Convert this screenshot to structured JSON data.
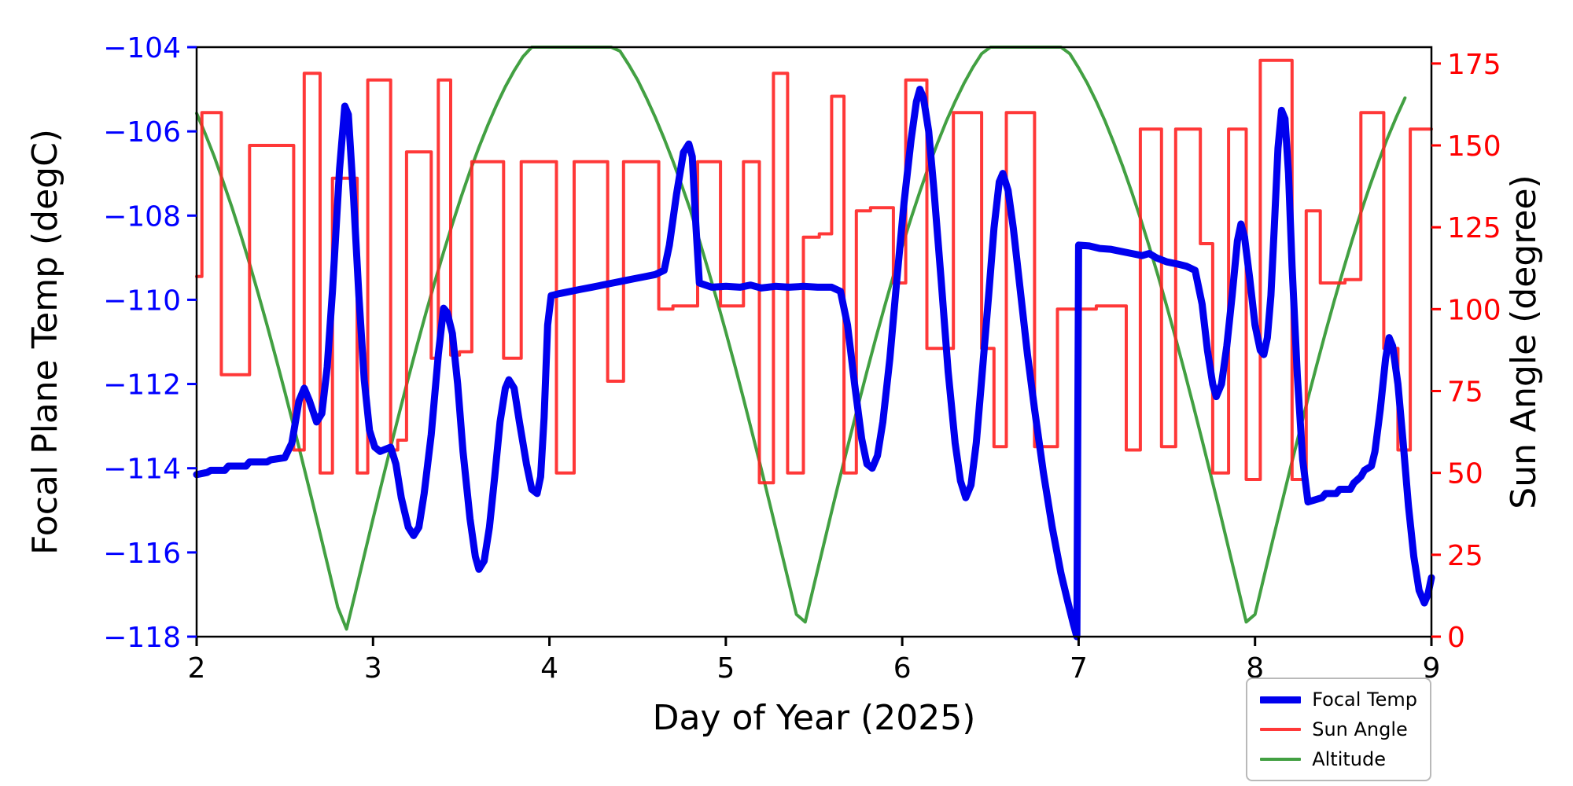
{
  "chart_data": {
    "type": "line",
    "title": "",
    "xlabel": "Day of Year (2025)",
    "ylabel_left": "Focal Plane Temp (degC)",
    "ylabel_right": "Sun Angle (degree)",
    "grid": false,
    "legend_position": "lower-right-outside",
    "x_axis": {
      "min": 2,
      "max": 9,
      "ticks": [
        2,
        3,
        4,
        5,
        6,
        7,
        8,
        9
      ],
      "tick_labels": [
        "2",
        "3",
        "4",
        "5",
        "6",
        "7",
        "8",
        "9"
      ]
    },
    "y_left_axis": {
      "min": -118,
      "max": -104,
      "color": "#0000ff",
      "ticks": [
        -104,
        -106,
        -108,
        -110,
        -112,
        -114,
        -116,
        -118
      ],
      "tick_labels": [
        "−104",
        "−106",
        "−108",
        "−110",
        "−112",
        "−114",
        "−116",
        "−118"
      ]
    },
    "y_right_axis": {
      "min": 0,
      "max": 180,
      "color": "#ff0000",
      "ticks": [
        0,
        25,
        50,
        75,
        100,
        125,
        150,
        175
      ],
      "tick_labels": [
        "0",
        "25",
        "50",
        "75",
        "100",
        "125",
        "150",
        "175"
      ]
    },
    "series": [
      {
        "name": "Focal Temp",
        "axis": "left",
        "color": "#0000ee",
        "width": 9,
        "opacity": 1,
        "style": "line",
        "points": [
          [
            2.0,
            -114.15
          ],
          [
            2.06,
            -114.1
          ],
          [
            2.08,
            -114.05
          ],
          [
            2.16,
            -114.05
          ],
          [
            2.18,
            -113.95
          ],
          [
            2.28,
            -113.95
          ],
          [
            2.3,
            -113.85
          ],
          [
            2.4,
            -113.85
          ],
          [
            2.42,
            -113.8
          ],
          [
            2.5,
            -113.75
          ],
          [
            2.54,
            -113.4
          ],
          [
            2.58,
            -112.4
          ],
          [
            2.61,
            -112.1
          ],
          [
            2.64,
            -112.4
          ],
          [
            2.68,
            -112.9
          ],
          [
            2.71,
            -112.7
          ],
          [
            2.74,
            -111.6
          ],
          [
            2.77,
            -109.8
          ],
          [
            2.81,
            -106.9
          ],
          [
            2.84,
            -105.4
          ],
          [
            2.86,
            -105.6
          ],
          [
            2.89,
            -107.6
          ],
          [
            2.92,
            -109.9
          ],
          [
            2.95,
            -111.9
          ],
          [
            2.98,
            -113.1
          ],
          [
            3.01,
            -113.5
          ],
          [
            3.04,
            -113.6
          ],
          [
            3.07,
            -113.55
          ],
          [
            3.1,
            -113.5
          ],
          [
            3.13,
            -113.9
          ],
          [
            3.16,
            -114.7
          ],
          [
            3.2,
            -115.4
          ],
          [
            3.23,
            -115.6
          ],
          [
            3.26,
            -115.4
          ],
          [
            3.29,
            -114.6
          ],
          [
            3.33,
            -113.2
          ],
          [
            3.37,
            -111.3
          ],
          [
            3.4,
            -110.2
          ],
          [
            3.42,
            -110.3
          ],
          [
            3.45,
            -110.8
          ],
          [
            3.48,
            -112.0
          ],
          [
            3.51,
            -113.6
          ],
          [
            3.55,
            -115.2
          ],
          [
            3.58,
            -116.1
          ],
          [
            3.6,
            -116.4
          ],
          [
            3.63,
            -116.2
          ],
          [
            3.66,
            -115.4
          ],
          [
            3.69,
            -114.2
          ],
          [
            3.72,
            -112.9
          ],
          [
            3.75,
            -112.1
          ],
          [
            3.77,
            -111.9
          ],
          [
            3.8,
            -112.1
          ],
          [
            3.83,
            -112.9
          ],
          [
            3.87,
            -113.9
          ],
          [
            3.9,
            -114.5
          ],
          [
            3.93,
            -114.6
          ],
          [
            3.95,
            -114.2
          ],
          [
            3.97,
            -112.8
          ],
          [
            3.99,
            -110.6
          ],
          [
            4.01,
            -109.9
          ],
          [
            4.06,
            -109.85
          ],
          [
            4.12,
            -109.8
          ],
          [
            4.18,
            -109.75
          ],
          [
            4.24,
            -109.7
          ],
          [
            4.3,
            -109.65
          ],
          [
            4.36,
            -109.6
          ],
          [
            4.42,
            -109.55
          ],
          [
            4.48,
            -109.5
          ],
          [
            4.54,
            -109.45
          ],
          [
            4.6,
            -109.4
          ],
          [
            4.65,
            -109.3
          ],
          [
            4.68,
            -108.7
          ],
          [
            4.72,
            -107.5
          ],
          [
            4.76,
            -106.5
          ],
          [
            4.79,
            -106.3
          ],
          [
            4.81,
            -106.6
          ],
          [
            4.83,
            -108.2
          ],
          [
            4.85,
            -109.6
          ],
          [
            4.92,
            -109.7
          ],
          [
            5.0,
            -109.68
          ],
          [
            5.08,
            -109.7
          ],
          [
            5.14,
            -109.65
          ],
          [
            5.2,
            -109.72
          ],
          [
            5.28,
            -109.68
          ],
          [
            5.36,
            -109.7
          ],
          [
            5.44,
            -109.68
          ],
          [
            5.52,
            -109.7
          ],
          [
            5.6,
            -109.7
          ],
          [
            5.65,
            -109.8
          ],
          [
            5.69,
            -110.6
          ],
          [
            5.73,
            -112.0
          ],
          [
            5.77,
            -113.3
          ],
          [
            5.8,
            -113.9
          ],
          [
            5.83,
            -114.0
          ],
          [
            5.86,
            -113.7
          ],
          [
            5.89,
            -112.9
          ],
          [
            5.93,
            -111.4
          ],
          [
            5.97,
            -109.5
          ],
          [
            6.01,
            -107.7
          ],
          [
            6.05,
            -106.2
          ],
          [
            6.08,
            -105.3
          ],
          [
            6.1,
            -105.0
          ],
          [
            6.12,
            -105.2
          ],
          [
            6.15,
            -106.0
          ],
          [
            6.18,
            -107.4
          ],
          [
            6.22,
            -109.5
          ],
          [
            6.26,
            -111.7
          ],
          [
            6.3,
            -113.4
          ],
          [
            6.33,
            -114.3
          ],
          [
            6.36,
            -114.7
          ],
          [
            6.39,
            -114.4
          ],
          [
            6.42,
            -113.4
          ],
          [
            6.45,
            -111.9
          ],
          [
            6.49,
            -109.9
          ],
          [
            6.52,
            -108.3
          ],
          [
            6.55,
            -107.2
          ],
          [
            6.57,
            -107.0
          ],
          [
            6.6,
            -107.4
          ],
          [
            6.63,
            -108.3
          ],
          [
            6.67,
            -109.8
          ],
          [
            6.71,
            -111.3
          ],
          [
            6.75,
            -112.6
          ],
          [
            6.8,
            -114.1
          ],
          [
            6.85,
            -115.4
          ],
          [
            6.9,
            -116.5
          ],
          [
            6.94,
            -117.2
          ],
          [
            6.97,
            -117.7
          ],
          [
            6.99,
            -118.0
          ],
          [
            7.0,
            -108.7
          ],
          [
            7.06,
            -108.72
          ],
          [
            7.12,
            -108.78
          ],
          [
            7.18,
            -108.8
          ],
          [
            7.24,
            -108.85
          ],
          [
            7.3,
            -108.9
          ],
          [
            7.36,
            -108.95
          ],
          [
            7.4,
            -108.9
          ],
          [
            7.44,
            -109.0
          ],
          [
            7.5,
            -109.1
          ],
          [
            7.56,
            -109.15
          ],
          [
            7.61,
            -109.2
          ],
          [
            7.66,
            -109.3
          ],
          [
            7.7,
            -110.1
          ],
          [
            7.73,
            -111.2
          ],
          [
            7.76,
            -112.0
          ],
          [
            7.78,
            -112.3
          ],
          [
            7.81,
            -112.0
          ],
          [
            7.84,
            -111.1
          ],
          [
            7.87,
            -109.9
          ],
          [
            7.9,
            -108.6
          ],
          [
            7.92,
            -108.2
          ],
          [
            7.94,
            -108.5
          ],
          [
            7.97,
            -109.5
          ],
          [
            8.0,
            -110.6
          ],
          [
            8.03,
            -111.2
          ],
          [
            8.05,
            -111.3
          ],
          [
            8.07,
            -110.9
          ],
          [
            8.09,
            -109.9
          ],
          [
            8.11,
            -108.2
          ],
          [
            8.13,
            -106.4
          ],
          [
            8.15,
            -105.5
          ],
          [
            8.17,
            -105.7
          ],
          [
            8.19,
            -107.0
          ],
          [
            8.21,
            -109.2
          ],
          [
            8.24,
            -111.8
          ],
          [
            8.27,
            -113.8
          ],
          [
            8.3,
            -114.8
          ],
          [
            8.34,
            -114.75
          ],
          [
            8.38,
            -114.7
          ],
          [
            8.4,
            -114.6
          ],
          [
            8.46,
            -114.6
          ],
          [
            8.48,
            -114.5
          ],
          [
            8.54,
            -114.5
          ],
          [
            8.56,
            -114.35
          ],
          [
            8.6,
            -114.2
          ],
          [
            8.62,
            -114.05
          ],
          [
            8.66,
            -113.95
          ],
          [
            8.68,
            -113.6
          ],
          [
            8.71,
            -112.6
          ],
          [
            8.74,
            -111.4
          ],
          [
            8.76,
            -110.9
          ],
          [
            8.78,
            -111.1
          ],
          [
            8.81,
            -112.0
          ],
          [
            8.84,
            -113.4
          ],
          [
            8.87,
            -114.9
          ],
          [
            8.9,
            -116.1
          ],
          [
            8.93,
            -116.9
          ],
          [
            8.96,
            -117.2
          ],
          [
            8.98,
            -117.0
          ],
          [
            9.0,
            -116.6
          ]
        ]
      },
      {
        "name": "Sun Angle",
        "axis": "right",
        "color": "#ff2222",
        "width": 4,
        "opacity": 0.9,
        "style": "step",
        "points": [
          [
            2.0,
            110
          ],
          [
            2.03,
            160
          ],
          [
            2.14,
            80
          ],
          [
            2.3,
            150
          ],
          [
            2.55,
            57
          ],
          [
            2.61,
            172
          ],
          [
            2.7,
            50
          ],
          [
            2.77,
            140
          ],
          [
            2.91,
            50
          ],
          [
            2.97,
            170
          ],
          [
            3.1,
            57
          ],
          [
            3.14,
            60
          ],
          [
            3.19,
            148
          ],
          [
            3.33,
            85
          ],
          [
            3.37,
            170
          ],
          [
            3.44,
            86
          ],
          [
            3.49,
            87
          ],
          [
            3.56,
            145
          ],
          [
            3.74,
            85
          ],
          [
            3.84,
            145
          ],
          [
            4.04,
            50
          ],
          [
            4.14,
            145
          ],
          [
            4.33,
            78
          ],
          [
            4.42,
            145
          ],
          [
            4.62,
            100
          ],
          [
            4.7,
            101
          ],
          [
            4.84,
            145
          ],
          [
            4.97,
            101
          ],
          [
            5.1,
            145
          ],
          [
            5.19,
            47
          ],
          [
            5.27,
            172
          ],
          [
            5.35,
            50
          ],
          [
            5.44,
            122
          ],
          [
            5.53,
            123
          ],
          [
            5.6,
            165
          ],
          [
            5.67,
            50
          ],
          [
            5.74,
            130
          ],
          [
            5.82,
            131
          ],
          [
            5.95,
            108
          ],
          [
            6.02,
            170
          ],
          [
            6.14,
            88
          ],
          [
            6.29,
            160
          ],
          [
            6.45,
            88
          ],
          [
            6.52,
            58
          ],
          [
            6.59,
            160
          ],
          [
            6.75,
            58
          ],
          [
            6.88,
            100
          ],
          [
            7.1,
            101
          ],
          [
            7.27,
            57
          ],
          [
            7.35,
            155
          ],
          [
            7.47,
            58
          ],
          [
            7.55,
            155
          ],
          [
            7.69,
            120
          ],
          [
            7.76,
            50
          ],
          [
            7.85,
            155
          ],
          [
            7.95,
            48
          ],
          [
            8.03,
            176
          ],
          [
            8.21,
            48
          ],
          [
            8.29,
            130
          ],
          [
            8.37,
            108
          ],
          [
            8.51,
            109
          ],
          [
            8.6,
            160
          ],
          [
            8.73,
            88
          ],
          [
            8.81,
            57
          ],
          [
            8.88,
            155
          ]
        ]
      },
      {
        "name": "Altitude",
        "axis": "right",
        "color": "#2e962e",
        "width": 4,
        "opacity": 0.9,
        "style": "line",
        "x_start": 2.0,
        "x_step": 0.05,
        "values": [
          159.8,
          153.4,
          146.6,
          139.0,
          131.1,
          122.7,
          113.9,
          104.6,
          95.0,
          85.0,
          74.8,
          64.3,
          53.5,
          42.6,
          31.5,
          20.3,
          9.0,
          2.3,
          13.5,
          24.8,
          36.0,
          47.0,
          57.9,
          68.5,
          78.9,
          89.1,
          98.9,
          108.3,
          117.4,
          126.0,
          134.3,
          142.1,
          149.4,
          156.1,
          162.3,
          167.9,
          172.8,
          177.1,
          180,
          180,
          180,
          180,
          180,
          180,
          180,
          180,
          180,
          180,
          178.8,
          174.6,
          170.0,
          164.5,
          158.6,
          152.1,
          145.2,
          137.8,
          130.1,
          121.0,
          112.0,
          102.7,
          93.0,
          83.0,
          72.7,
          62.1,
          51.4,
          40.4,
          29.3,
          18.1,
          6.8,
          4.5,
          15.8,
          27.0,
          38.2,
          49.2,
          60.0,
          70.6,
          81.0,
          91.1,
          100.8,
          110.2,
          119.2,
          127.8,
          135.9,
          143.6,
          150.7,
          157.4,
          163.4,
          168.9,
          173.8,
          178.0,
          180,
          180,
          180,
          180,
          180,
          180,
          180,
          180,
          180,
          178.0,
          173.7,
          168.9,
          163.4,
          157.4,
          150.7,
          143.6,
          135.9,
          127.8,
          119.2,
          110.2,
          100.8,
          91.1,
          81.0,
          70.6,
          60.0,
          49.2,
          38.2,
          27.0,
          15.8,
          4.5,
          6.8,
          18.1,
          29.3,
          40.4,
          51.4,
          62.1,
          72.7,
          83.0,
          93.0,
          102.7,
          112.0,
          121.0,
          129.5,
          137.5,
          145.0,
          152.1,
          158.5,
          164.5
        ]
      }
    ]
  }
}
